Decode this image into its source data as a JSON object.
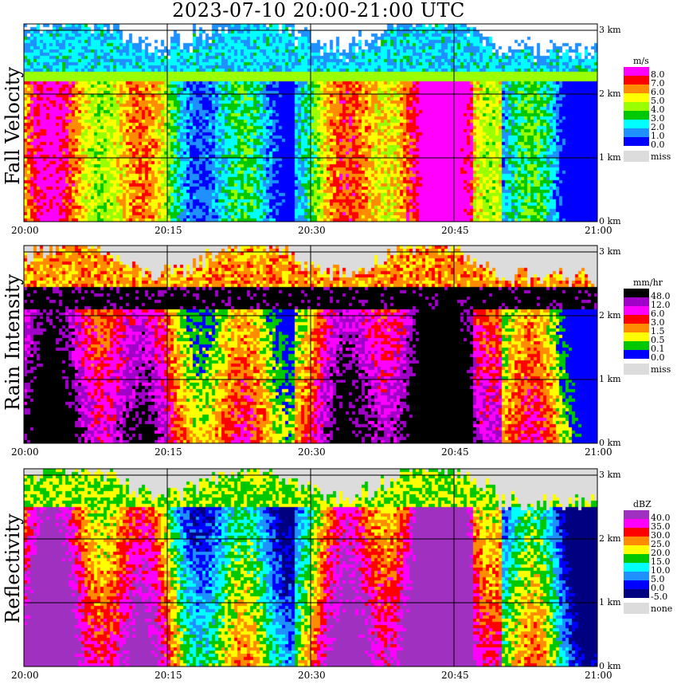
{
  "title": "2023-07-10   20:00-21:00 UTC",
  "chart_data": [
    {
      "type": "heatmap",
      "name": "Fall Velocity",
      "ylabel": "Fall Velocity",
      "unit": "m/s",
      "x_ticks": [
        "20:00",
        "20:15",
        "20:30",
        "20:45",
        "21:00"
      ],
      "y_ticks": [
        "0 km",
        "1 km",
        "2 km",
        "3 km"
      ],
      "ylim_km": [
        0,
        3.1
      ],
      "legend": [
        {
          "label": "8.0",
          "color": "#ff00ff"
        },
        {
          "label": "7.0",
          "color": "#ff0000"
        },
        {
          "label": "6.0",
          "color": "#ff8c00"
        },
        {
          "label": "5.0",
          "color": "#ffff00"
        },
        {
          "label": "4.0",
          "color": "#9aff00"
        },
        {
          "label": "3.0",
          "color": "#00c800"
        },
        {
          "label": "2.0",
          "color": "#00ffff"
        },
        {
          "label": "1.0",
          "color": "#1e90ff"
        },
        {
          "label": "0.0",
          "color": "#0000ff"
        },
        {
          "label": "miss",
          "color": "#dcdcdc"
        }
      ]
    },
    {
      "type": "heatmap",
      "name": "Rain Intensity",
      "ylabel": "Rain Intensity",
      "unit": "mm/hr",
      "x_ticks": [
        "20:00",
        "20:15",
        "20:30",
        "20:45",
        "21:00"
      ],
      "y_ticks": [
        "0 km",
        "1 km",
        "2 km",
        "3 km"
      ],
      "ylim_km": [
        0,
        3.1
      ],
      "legend": [
        {
          "label": "48.0",
          "color": "#000000"
        },
        {
          "label": "12.0",
          "color": "#a000c8"
        },
        {
          "label": "6.0",
          "color": "#ff00ff"
        },
        {
          "label": "3.0",
          "color": "#ff0000"
        },
        {
          "label": "1.5",
          "color": "#ff8c00"
        },
        {
          "label": "0.5",
          "color": "#ffff00"
        },
        {
          "label": "0.1",
          "color": "#00c800"
        },
        {
          "label": "0.0",
          "color": "#0000ff"
        },
        {
          "label": "miss",
          "color": "#dcdcdc"
        }
      ]
    },
    {
      "type": "heatmap",
      "name": "Reflectivity",
      "ylabel": "Reflectivity",
      "unit": "dBZ",
      "x_ticks": [
        "20:00",
        "20:15",
        "20:30",
        "20:45",
        "21:00"
      ],
      "y_ticks": [
        "0 km",
        "1 km",
        "2 km",
        "3 km"
      ],
      "ylim_km": [
        0,
        3.1
      ],
      "legend": [
        {
          "label": "40.0",
          "color": "#a030c0"
        },
        {
          "label": "35.0",
          "color": "#ff00ff"
        },
        {
          "label": "30.0",
          "color": "#ff0000"
        },
        {
          "label": "25.0",
          "color": "#ff8c00"
        },
        {
          "label": "20.0",
          "color": "#ffff00"
        },
        {
          "label": "15.0",
          "color": "#00c800"
        },
        {
          "label": "10.0",
          "color": "#00ffff"
        },
        {
          "label": "5.0",
          "color": "#1e90ff"
        },
        {
          "label": "0.0",
          "color": "#0000ff"
        },
        {
          "label": "-5.0",
          "color": "#000080"
        },
        {
          "label": "none",
          "color": "#dcdcdc"
        }
      ]
    }
  ]
}
